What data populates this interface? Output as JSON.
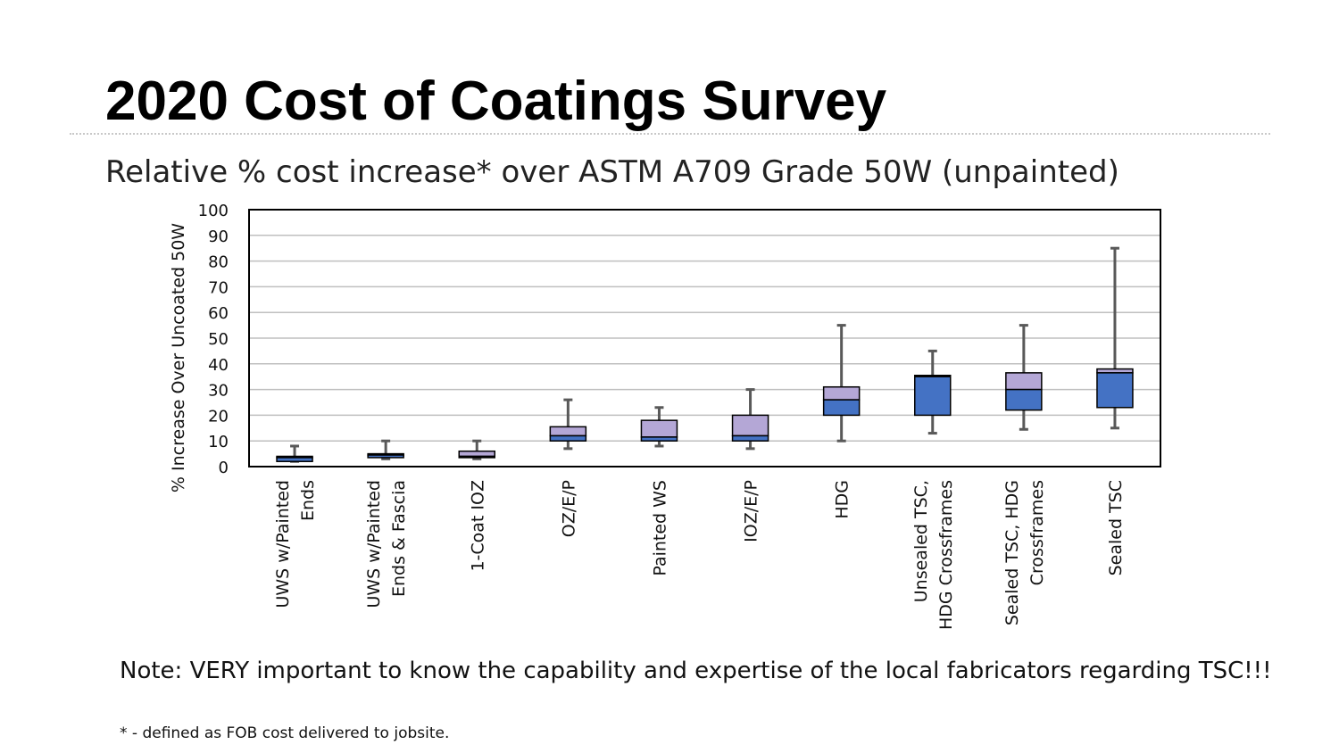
{
  "slide": {
    "title": "2020 Cost of Coatings Survey",
    "subtitle": "Relative % cost increase* over ASTM A709 Grade 50W (unpainted)",
    "note": "Note: VERY important to know the capability and expertise of the local fabricators regarding TSC!!!",
    "footnote": "* - defined as FOB cost delivered to jobsite."
  },
  "colors": {
    "lower_box": "#4472c4",
    "upper_box": "#b4a7d6",
    "whisker": "#595959",
    "grid": "#bfbfbf"
  },
  "chart_data": {
    "type": "box",
    "ylabel": "% Increase Over Uncoated 50W",
    "ylim": [
      0,
      100
    ],
    "yticks": [
      0,
      10,
      20,
      30,
      40,
      50,
      60,
      70,
      80,
      90,
      100
    ],
    "grid": true,
    "categories": [
      {
        "lines": [
          "UWS w/Painted",
          "Ends"
        ],
        "min": 2,
        "q1": 2,
        "median": 3.5,
        "q3": 4,
        "max": 8
      },
      {
        "lines": [
          "UWS w/Painted",
          "Ends & Fascia"
        ],
        "min": 3,
        "q1": 3.5,
        "median": 4.5,
        "q3": 5,
        "max": 10
      },
      {
        "lines": [
          "1-Coat IOZ"
        ],
        "min": 3,
        "q1": 3.5,
        "median": 4,
        "q3": 6,
        "max": 10
      },
      {
        "lines": [
          "OZ/E/P"
        ],
        "min": 7,
        "q1": 10,
        "median": 12,
        "q3": 15.5,
        "max": 26
      },
      {
        "lines": [
          "Painted WS"
        ],
        "min": 8,
        "q1": 10,
        "median": 11.5,
        "q3": 18,
        "max": 23
      },
      {
        "lines": [
          "IOZ/E/P"
        ],
        "min": 7,
        "q1": 10,
        "median": 12,
        "q3": 20,
        "max": 30
      },
      {
        "lines": [
          "HDG"
        ],
        "min": 10,
        "q1": 20,
        "median": 26,
        "q3": 31,
        "max": 55
      },
      {
        "lines": [
          "Unsealed TSC,",
          "HDG Crossframes"
        ],
        "min": 13,
        "q1": 20,
        "median": 35,
        "q3": 35.5,
        "max": 45
      },
      {
        "lines": [
          "Sealed TSC, HDG",
          "Crossframes"
        ],
        "min": 14.5,
        "q1": 22,
        "median": 30,
        "q3": 36.5,
        "max": 55
      },
      {
        "lines": [
          "Sealed TSC"
        ],
        "min": 15,
        "q1": 23,
        "median": 36.5,
        "q3": 38,
        "max": 85
      }
    ]
  }
}
